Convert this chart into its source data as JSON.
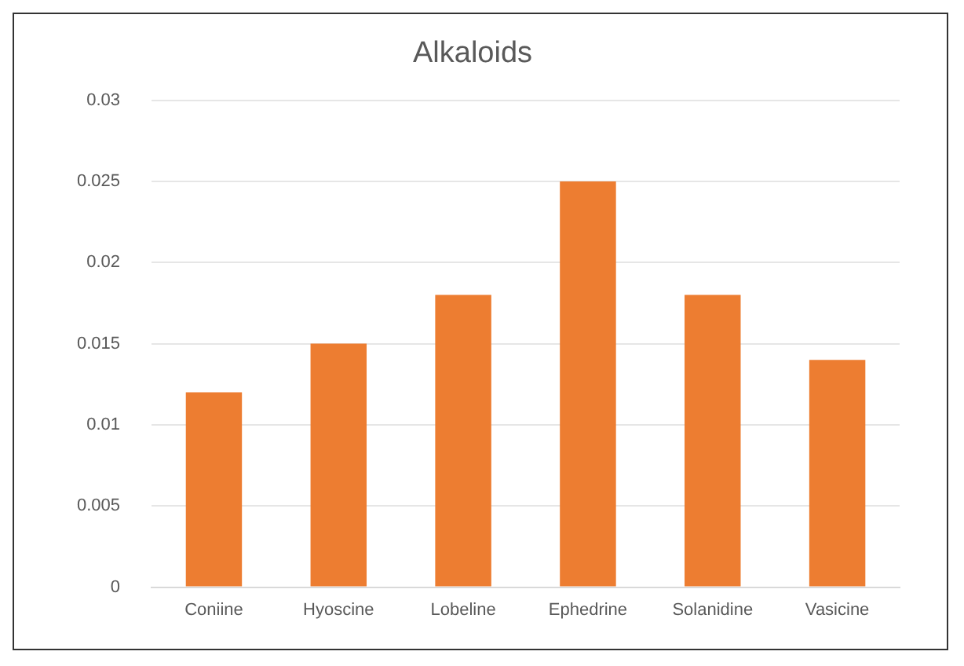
{
  "chart_data": {
    "type": "bar",
    "title": "Alkaloids",
    "categories": [
      "Coniine",
      "Hyoscine",
      "Lobeline",
      "Ephedrine",
      "Solanidine",
      "Vasicine"
    ],
    "values": [
      0.012,
      0.015,
      0.018,
      0.025,
      0.018,
      0.014
    ],
    "color": "#ed7d31",
    "ylim": [
      0,
      0.03
    ],
    "yticks": [
      0,
      0.005,
      0.01,
      0.015,
      0.02,
      0.025,
      0.03
    ],
    "grid": "y",
    "legend": false
  }
}
